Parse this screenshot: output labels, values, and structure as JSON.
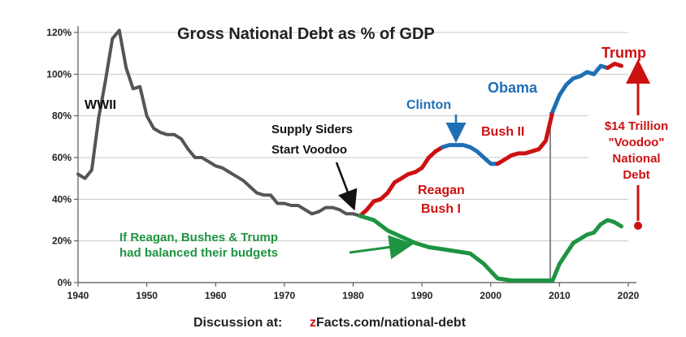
{
  "chart_data": {
    "type": "line",
    "title": "Gross National Debt  as % of GDP",
    "xlim": [
      1940,
      2020
    ],
    "ylim": [
      0,
      120
    ],
    "y_tick_labels": [
      "0%",
      "20%",
      "40%",
      "60%",
      "80%",
      "100%",
      "120%"
    ],
    "x_tick_labels": [
      "1940",
      "1950",
      "1960",
      "1970",
      "1980",
      "1990",
      "2000",
      "2010",
      "2020"
    ],
    "grid": true,
    "series": [
      {
        "color": "#555555",
        "points": [
          [
            1940,
            52
          ],
          [
            1941,
            50
          ],
          [
            1942,
            54
          ],
          [
            1943,
            79
          ],
          [
            1944,
            97
          ],
          [
            1945,
            117
          ],
          [
            1946,
            121
          ],
          [
            1947,
            103
          ],
          [
            1948,
            93
          ],
          [
            1949,
            94
          ],
          [
            1950,
            80
          ],
          [
            1951,
            74
          ],
          [
            1952,
            72
          ],
          [
            1953,
            71
          ],
          [
            1954,
            71
          ],
          [
            1955,
            69
          ],
          [
            1956,
            64
          ],
          [
            1957,
            60
          ],
          [
            1958,
            60
          ],
          [
            1959,
            58
          ],
          [
            1960,
            56
          ],
          [
            1961,
            55
          ],
          [
            1962,
            53
          ],
          [
            1963,
            51
          ],
          [
            1964,
            49
          ],
          [
            1965,
            46
          ],
          [
            1966,
            43
          ],
          [
            1967,
            42
          ],
          [
            1968,
            42
          ],
          [
            1969,
            38
          ],
          [
            1970,
            38
          ],
          [
            1971,
            37
          ],
          [
            1972,
            37
          ],
          [
            1973,
            35
          ],
          [
            1974,
            33
          ],
          [
            1975,
            34
          ],
          [
            1976,
            36
          ],
          [
            1977,
            36
          ],
          [
            1978,
            35
          ],
          [
            1979,
            33
          ],
          [
            1980,
            33
          ],
          [
            1981,
            32
          ]
        ]
      },
      {
        "color": "#cc1111",
        "points": [
          [
            1981,
            32
          ],
          [
            1982,
            35
          ],
          [
            1983,
            39
          ],
          [
            1984,
            40
          ],
          [
            1985,
            43
          ],
          [
            1986,
            48
          ],
          [
            1987,
            50
          ],
          [
            1988,
            52
          ],
          [
            1989,
            53
          ],
          [
            1990,
            55
          ],
          [
            1991,
            60
          ],
          [
            1992,
            63
          ],
          [
            1993,
            65
          ]
        ]
      },
      {
        "color": "#1f6fb5",
        "points": [
          [
            1993,
            65
          ],
          [
            1994,
            66
          ],
          [
            1995,
            66
          ],
          [
            1996,
            66
          ],
          [
            1997,
            65
          ],
          [
            1998,
            63
          ],
          [
            1999,
            60
          ],
          [
            2000,
            57
          ],
          [
            2001,
            57
          ]
        ]
      },
      {
        "color": "#cc1111",
        "points": [
          [
            2001,
            57
          ],
          [
            2002,
            59
          ],
          [
            2003,
            61
          ],
          [
            2004,
            62
          ],
          [
            2005,
            62
          ],
          [
            2006,
            63
          ],
          [
            2007,
            64
          ],
          [
            2008,
            68
          ],
          [
            2009,
            82
          ]
        ]
      },
      {
        "color": "#1f6fb5",
        "points": [
          [
            2009,
            82
          ],
          [
            2010,
            90
          ],
          [
            2011,
            95
          ],
          [
            2012,
            98
          ],
          [
            2013,
            99
          ],
          [
            2014,
            101
          ],
          [
            2015,
            100
          ],
          [
            2016,
            104
          ],
          [
            2017,
            103
          ]
        ]
      },
      {
        "color": "#cc1111",
        "points": [
          [
            2017,
            103
          ],
          [
            2018,
            105
          ],
          [
            2019,
            104
          ]
        ]
      },
      {
        "color": "#1e9442",
        "points": [
          [
            1981,
            32
          ],
          [
            1983,
            30
          ],
          [
            1985,
            25
          ],
          [
            1987,
            22
          ],
          [
            1989,
            19
          ],
          [
            1991,
            17
          ],
          [
            1993,
            16
          ],
          [
            1995,
            15
          ],
          [
            1997,
            14
          ],
          [
            1999,
            9
          ],
          [
            2001,
            2
          ],
          [
            2003,
            1
          ],
          [
            2005,
            1
          ],
          [
            2007,
            1
          ],
          [
            2009,
            1
          ],
          [
            2010,
            9
          ],
          [
            2011,
            14
          ],
          [
            2012,
            19
          ],
          [
            2013,
            21
          ],
          [
            2014,
            23
          ],
          [
            2015,
            24
          ],
          [
            2016,
            28
          ],
          [
            2017,
            30
          ],
          [
            2018,
            29
          ],
          [
            2019,
            27
          ]
        ]
      }
    ],
    "annotations": [
      {
        "text": "WWII",
        "color": "#111111"
      },
      {
        "text": "Supply Siders",
        "color": "#111111"
      },
      {
        "text": "Start Voodoo",
        "color": "#111111"
      },
      {
        "text": "Clinton",
        "color": "#1f6fb5"
      },
      {
        "text": "Obama",
        "color": "#1f6fb5"
      },
      {
        "text": "Bush II",
        "color": "#cc1111"
      },
      {
        "text": "Reagan",
        "color": "#cc1111"
      },
      {
        "text": "Bush I",
        "color": "#cc1111"
      },
      {
        "text": "Trump",
        "color": "#cc1111"
      },
      {
        "text": "$14 Trillion",
        "color": "#cc1111"
      },
      {
        "text": "\"Voodoo\"",
        "color": "#cc1111"
      },
      {
        "text": "National",
        "color": "#cc1111"
      },
      {
        "text": "Debt",
        "color": "#cc1111"
      },
      {
        "text": "If Reagan,  Bushes & Trump",
        "color": "#1e9442"
      },
      {
        "text": "had balanced their budgets",
        "color": "#1e9442"
      }
    ],
    "footer": {
      "label": "Discussion at:",
      "link_prefix": "z",
      "link_rest": "Facts.com/national-debt"
    }
  }
}
